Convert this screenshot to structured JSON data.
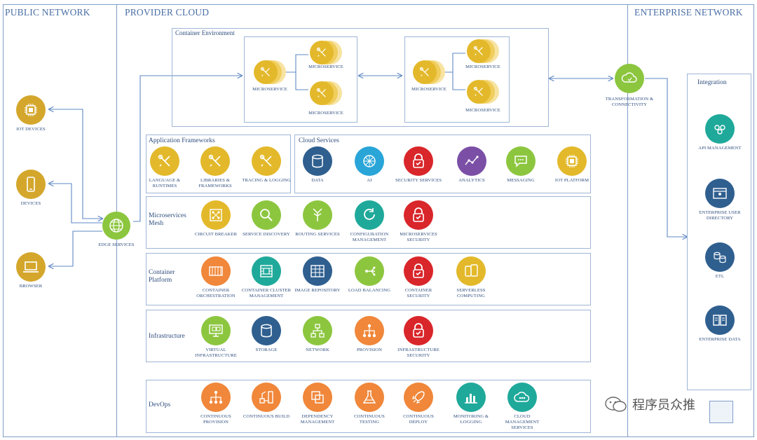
{
  "zones": {
    "public": "PUBLIC NETWORK",
    "provider": "PROVIDER CLOUD",
    "enterprise": "ENTERPRISE NETWORK"
  },
  "public_items": [
    {
      "label": "IoT DEVICES",
      "icon": "chip-icon",
      "color": "#d4a72c"
    },
    {
      "label": "DEVICES",
      "icon": "phone-icon",
      "color": "#d4a72c"
    },
    {
      "label": "BROWSER",
      "icon": "laptop-icon",
      "color": "#d4a72c"
    }
  ],
  "edge": {
    "label": "EDGE SERVICES",
    "color": "#8cc63f"
  },
  "container_env": {
    "title": "Container Environment",
    "microservice_label": "MICROSERVICE"
  },
  "transformation": {
    "label": "TRANSFORMATION & CONNECTIVITY",
    "color": "#8cc63f"
  },
  "app_frameworks": {
    "title": "Application Frameworks",
    "items": [
      {
        "label": "LANGUAGE & RUNTIMES",
        "icon": "tools-icon",
        "color": "#e3b92b"
      },
      {
        "label": "LIBRARIES & FRAMEWORKS",
        "icon": "tools-icon",
        "color": "#e3b92b"
      },
      {
        "label": "TRACING & LOGGING",
        "icon": "tools-icon",
        "color": "#e3b92b"
      }
    ]
  },
  "cloud_services": {
    "title": "Cloud Services",
    "items": [
      {
        "label": "DATA",
        "icon": "database-icon",
        "color": "#2f5f8f"
      },
      {
        "label": "AI",
        "icon": "ai-icon",
        "color": "#2aa5d8"
      },
      {
        "label": "SECURITY SERVICES",
        "icon": "lock-icon",
        "color": "#d9262b"
      },
      {
        "label": "ANALYTICS",
        "icon": "analytics-icon",
        "color": "#7b4fa6"
      },
      {
        "label": "MESSAGING",
        "icon": "chat-icon",
        "color": "#8cc63f"
      },
      {
        "label": "IoT PLATFORM",
        "icon": "chip-icon",
        "color": "#e3b92b"
      }
    ]
  },
  "mesh": {
    "title": "Microservices Mesh",
    "items": [
      {
        "label": "CIRCUIT BREAKER",
        "icon": "circuit-icon",
        "color": "#e3b92b"
      },
      {
        "label": "SERVICE DISCOVERY",
        "icon": "magnifier-icon",
        "color": "#8cc63f"
      },
      {
        "label": "ROUTING SERVICES",
        "icon": "routing-icon",
        "color": "#8cc63f"
      },
      {
        "label": "CONFIGURATION MANAGEMENT",
        "icon": "cycle-icon",
        "color": "#1fa99a"
      },
      {
        "label": "MICROSERVICES SECURITY",
        "icon": "lock-icon",
        "color": "#d9262b"
      }
    ]
  },
  "container_platform": {
    "title": "Container Platform",
    "items": [
      {
        "label": "CONTAINER ORCHESTRATION",
        "icon": "containers-icon",
        "color": "#f0873a"
      },
      {
        "label": "CONTAINER CLUSTER MANAGEMENT",
        "icon": "cluster-icon",
        "color": "#1fa99a"
      },
      {
        "label": "IMAGE REPOSITORY",
        "icon": "grid-icon",
        "color": "#2f5f8f"
      },
      {
        "label": "LOAD BALANCING",
        "icon": "balance-icon",
        "color": "#8cc63f"
      },
      {
        "label": "CONTAINER SECURITY",
        "icon": "lock-icon",
        "color": "#d9262b"
      },
      {
        "label": "SERVERLESS COMPUTING",
        "icon": "phones-icon",
        "color": "#e3b92b"
      }
    ]
  },
  "infrastructure": {
    "title": "Infrastructure",
    "items": [
      {
        "label": "VIRTUAL INFRASTRUCTURE",
        "icon": "virtual-icon",
        "color": "#8cc63f"
      },
      {
        "label": "STORAGE",
        "icon": "database-icon",
        "color": "#2f5f8f"
      },
      {
        "label": "NETWORK",
        "icon": "network-icon",
        "color": "#8cc63f"
      },
      {
        "label": "PROVISION",
        "icon": "hierarchy-icon",
        "color": "#f0873a"
      },
      {
        "label": "INFRASTRUCTURE SECURITY",
        "icon": "lock-icon",
        "color": "#d9262b"
      }
    ]
  },
  "devops": {
    "title": "DevOps",
    "items": [
      {
        "label": "CONTINUOUS PROVISION",
        "icon": "hierarchy-icon",
        "color": "#f0873a"
      },
      {
        "label": "CONTINUOUS BUILD",
        "icon": "build-icon",
        "color": "#f0873a"
      },
      {
        "label": "DEPENDENCY MANAGEMENT",
        "icon": "layers-icon",
        "color": "#f0873a"
      },
      {
        "label": "CONTINUOUS TESTING",
        "icon": "flask-icon",
        "color": "#f0873a"
      },
      {
        "label": "CONTINUOUS DEPLOY",
        "icon": "rocket-icon",
        "color": "#f0873a"
      },
      {
        "label": "MONITORING & LOGGING",
        "icon": "barchart-icon",
        "color": "#1fa99a"
      },
      {
        "label": "CLOUD MANAGEMENT SERVICES",
        "icon": "cloud-icon",
        "color": "#1fa99a"
      }
    ]
  },
  "integration": {
    "title": "Integration",
    "items": [
      {
        "label": "API MANAGEMENT",
        "icon": "api-icon",
        "color": "#1fa99a"
      },
      {
        "label": "ENTERPRISE USER DIRECTORY",
        "icon": "directory-icon",
        "color": "#2f5f8f"
      },
      {
        "label": "ETL",
        "icon": "etl-icon",
        "color": "#2f5f8f"
      },
      {
        "label": "ENTERPRISE DATA",
        "icon": "book-icon",
        "color": "#2f5f8f"
      }
    ]
  },
  "watermark": "程序员众推"
}
